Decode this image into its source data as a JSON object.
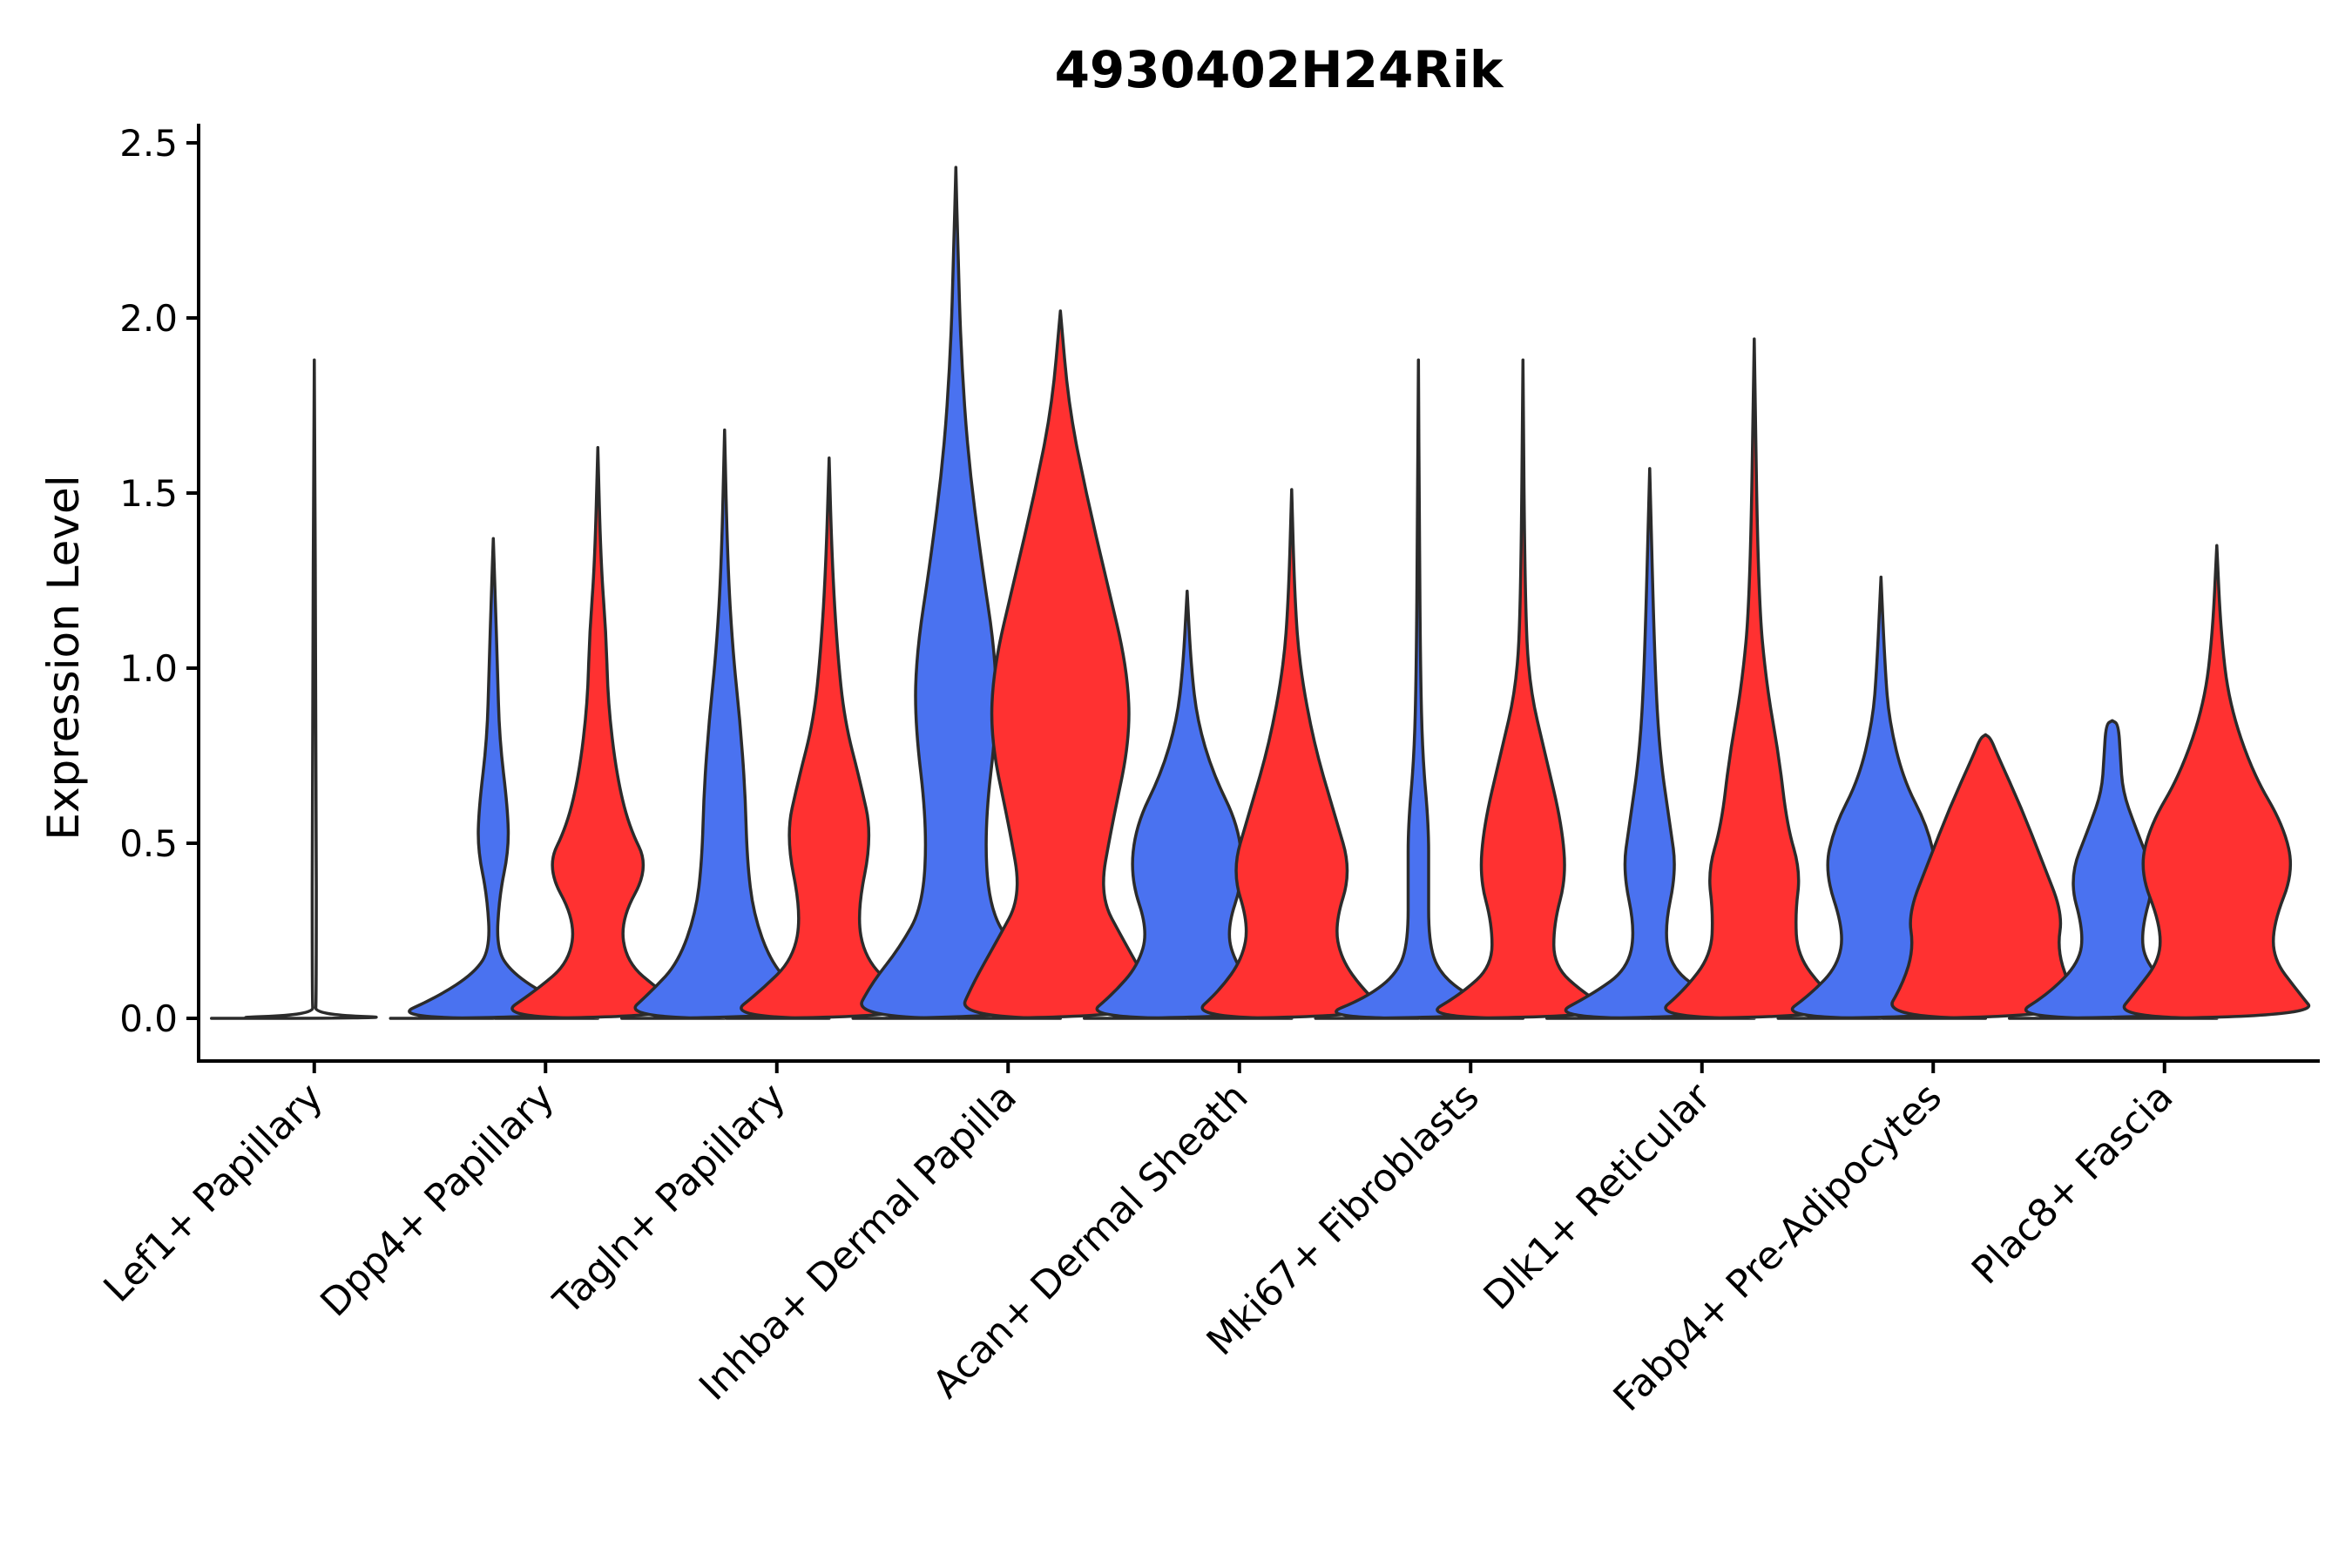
{
  "chart_data": {
    "type": "violin",
    "title": "4930402H24Rik",
    "ylabel": "Expression Level",
    "xlabel": "",
    "ylim": [
      -0.12,
      2.55
    ],
    "yticks": [
      0.0,
      0.5,
      1.0,
      1.5,
      2.0,
      2.5
    ],
    "ytick_labels": [
      "0.0",
      "0.5",
      "1.0",
      "1.5",
      "2.0",
      "2.5"
    ],
    "colors": {
      "group1": "#4a72f0",
      "group2": "#ff3131",
      "empty": "#ffffff",
      "outline": "#2b2b2b"
    },
    "categories": [
      "Lef1+ Papillary",
      "Dpp4+ Papillary",
      "Tagln+ Papillary",
      "Inhba+ Dermal Papilla",
      "Acan+ Dermal Sheath",
      "Mki67+ Fibroblasts",
      "Dlk1+ Reticular",
      "Fabp4+ Pre-Adipocytes",
      "Plac8+ Fascia"
    ],
    "violins": [
      {
        "category": "Lef1+ Papillary",
        "group": "group1",
        "max": 1.88,
        "profile": [
          [
            0.0,
            1.0
          ],
          [
            0.01,
            0.01
          ],
          [
            0.05,
            0.02
          ],
          [
            0.7,
            0.02
          ],
          [
            1.88,
            0.0
          ]
        ]
      },
      {
        "category": "Dpp4+ Papillary",
        "group": "group1",
        "max": 1.37,
        "profile": [
          [
            0.0,
            1.0
          ],
          [
            0.06,
            0.55
          ],
          [
            0.13,
            0.18
          ],
          [
            0.2,
            0.03
          ],
          [
            0.35,
            0.06
          ],
          [
            0.48,
            0.15
          ],
          [
            0.6,
            0.14
          ],
          [
            0.8,
            0.06
          ],
          [
            1.0,
            0.04
          ],
          [
            1.2,
            0.02
          ],
          [
            1.37,
            0.0
          ]
        ]
      },
      {
        "category": "Dpp4+ Papillary",
        "group": "group2",
        "max": 1.63,
        "profile": [
          [
            0.0,
            1.0
          ],
          [
            0.08,
            0.6
          ],
          [
            0.16,
            0.28
          ],
          [
            0.28,
            0.22
          ],
          [
            0.43,
            0.5
          ],
          [
            0.55,
            0.3
          ],
          [
            0.7,
            0.18
          ],
          [
            0.9,
            0.1
          ],
          [
            1.1,
            0.08
          ],
          [
            1.3,
            0.03
          ],
          [
            1.63,
            0.0
          ]
        ]
      },
      {
        "category": "Tagln+ Papillary",
        "group": "group1",
        "max": 1.68,
        "profile": [
          [
            0.0,
            1.0
          ],
          [
            0.08,
            0.7
          ],
          [
            0.16,
            0.45
          ],
          [
            0.3,
            0.28
          ],
          [
            0.45,
            0.22
          ],
          [
            0.65,
            0.2
          ],
          [
            0.85,
            0.15
          ],
          [
            1.05,
            0.08
          ],
          [
            1.3,
            0.03
          ],
          [
            1.68,
            0.0
          ]
        ]
      },
      {
        "category": "Tagln+ Papillary",
        "group": "group2",
        "max": 1.6,
        "profile": [
          [
            0.0,
            1.0
          ],
          [
            0.08,
            0.66
          ],
          [
            0.17,
            0.35
          ],
          [
            0.3,
            0.27
          ],
          [
            0.52,
            0.42
          ],
          [
            0.68,
            0.3
          ],
          [
            0.85,
            0.15
          ],
          [
            1.05,
            0.08
          ],
          [
            1.3,
            0.03
          ],
          [
            1.6,
            0.0
          ]
        ]
      },
      {
        "category": "Inhba+ Dermal Papilla",
        "group": "group1",
        "max": 2.43,
        "profile": [
          [
            0.0,
            1.0
          ],
          [
            0.1,
            0.82
          ],
          [
            0.2,
            0.55
          ],
          [
            0.32,
            0.32
          ],
          [
            0.55,
            0.28
          ],
          [
            0.85,
            0.4
          ],
          [
            1.05,
            0.38
          ],
          [
            1.3,
            0.25
          ],
          [
            1.6,
            0.12
          ],
          [
            1.9,
            0.05
          ],
          [
            2.2,
            0.02
          ],
          [
            2.43,
            0.0
          ]
        ]
      },
      {
        "category": "Inhba+ Dermal Papilla",
        "group": "group2",
        "max": 2.02,
        "profile": [
          [
            0.0,
            1.0
          ],
          [
            0.1,
            0.85
          ],
          [
            0.22,
            0.62
          ],
          [
            0.35,
            0.38
          ],
          [
            0.55,
            0.5
          ],
          [
            0.8,
            0.68
          ],
          [
            1.0,
            0.65
          ],
          [
            1.25,
            0.45
          ],
          [
            1.5,
            0.25
          ],
          [
            1.75,
            0.08
          ],
          [
            2.02,
            0.0
          ]
        ]
      },
      {
        "category": "Acan+ Dermal Sheath",
        "group": "group1",
        "max": 1.22,
        "profile": [
          [
            0.0,
            1.0
          ],
          [
            0.07,
            0.72
          ],
          [
            0.15,
            0.48
          ],
          [
            0.25,
            0.38
          ],
          [
            0.4,
            0.55
          ],
          [
            0.55,
            0.5
          ],
          [
            0.7,
            0.25
          ],
          [
            0.85,
            0.1
          ],
          [
            1.0,
            0.04
          ],
          [
            1.22,
            0.0
          ]
        ]
      },
      {
        "category": "Acan+ Dermal Sheath",
        "group": "group2",
        "max": 1.51,
        "profile": [
          [
            0.0,
            1.0
          ],
          [
            0.08,
            0.7
          ],
          [
            0.17,
            0.48
          ],
          [
            0.27,
            0.42
          ],
          [
            0.42,
            0.58
          ],
          [
            0.58,
            0.42
          ],
          [
            0.78,
            0.22
          ],
          [
            1.0,
            0.08
          ],
          [
            1.2,
            0.03
          ],
          [
            1.51,
            0.0
          ]
        ]
      },
      {
        "category": "Mki67+ Fibroblasts",
        "group": "group1",
        "max": 1.88,
        "profile": [
          [
            0.0,
            1.0
          ],
          [
            0.06,
            0.5
          ],
          [
            0.13,
            0.2
          ],
          [
            0.22,
            0.1
          ],
          [
            0.4,
            0.1
          ],
          [
            0.55,
            0.1
          ],
          [
            0.75,
            0.04
          ],
          [
            1.0,
            0.02
          ],
          [
            1.4,
            0.01
          ],
          [
            1.88,
            0.0
          ]
        ]
      },
      {
        "category": "Mki67+ Fibroblasts",
        "group": "group2",
        "max": 1.88,
        "profile": [
          [
            0.0,
            1.0
          ],
          [
            0.07,
            0.6
          ],
          [
            0.15,
            0.3
          ],
          [
            0.27,
            0.3
          ],
          [
            0.4,
            0.42
          ],
          [
            0.55,
            0.38
          ],
          [
            0.75,
            0.22
          ],
          [
            0.95,
            0.06
          ],
          [
            1.2,
            0.02
          ],
          [
            1.88,
            0.0
          ]
        ]
      },
      {
        "category": "Dlk1+ Reticular",
        "group": "group1",
        "max": 1.57,
        "profile": [
          [
            0.0,
            1.0
          ],
          [
            0.07,
            0.55
          ],
          [
            0.14,
            0.22
          ],
          [
            0.25,
            0.14
          ],
          [
            0.42,
            0.26
          ],
          [
            0.55,
            0.2
          ],
          [
            0.75,
            0.1
          ],
          [
            1.0,
            0.05
          ],
          [
            1.57,
            0.0
          ]
        ]
      },
      {
        "category": "Dlk1+ Reticular",
        "group": "group2",
        "max": 1.94,
        "profile": [
          [
            0.0,
            1.0
          ],
          [
            0.08,
            0.68
          ],
          [
            0.18,
            0.42
          ],
          [
            0.3,
            0.4
          ],
          [
            0.42,
            0.45
          ],
          [
            0.55,
            0.32
          ],
          [
            0.75,
            0.24
          ],
          [
            0.95,
            0.12
          ],
          [
            1.2,
            0.04
          ],
          [
            1.94,
            0.0
          ]
        ]
      },
      {
        "category": "Fabp4+ Pre-Adipocytes",
        "group": "group1",
        "max": 1.26,
        "profile": [
          [
            0.0,
            1.0
          ],
          [
            0.07,
            0.68
          ],
          [
            0.15,
            0.42
          ],
          [
            0.25,
            0.36
          ],
          [
            0.42,
            0.55
          ],
          [
            0.55,
            0.45
          ],
          [
            0.68,
            0.22
          ],
          [
            0.85,
            0.08
          ],
          [
            1.0,
            0.04
          ],
          [
            1.26,
            0.0
          ]
        ]
      },
      {
        "category": "Fabp4+ Pre-Adipocytes",
        "group": "group2",
        "max": 0.81,
        "profile": [
          [
            0.0,
            1.0
          ],
          [
            0.1,
            0.8
          ],
          [
            0.2,
            0.7
          ],
          [
            0.3,
            0.75
          ],
          [
            0.45,
            0.55
          ],
          [
            0.6,
            0.35
          ],
          [
            0.75,
            0.12
          ],
          [
            0.8,
            0.05
          ],
          [
            0.81,
            0.0
          ]
        ]
      },
      {
        "category": "Plac8+ Fascia",
        "group": "group1",
        "max": 0.85,
        "profile": [
          [
            0.0,
            1.0
          ],
          [
            0.07,
            0.62
          ],
          [
            0.16,
            0.32
          ],
          [
            0.25,
            0.28
          ],
          [
            0.4,
            0.42
          ],
          [
            0.55,
            0.22
          ],
          [
            0.65,
            0.1
          ],
          [
            0.75,
            0.08
          ],
          [
            0.84,
            0.06
          ],
          [
            0.85,
            0.0
          ]
        ]
      },
      {
        "category": "Plac8+ Fascia",
        "group": "group2",
        "max": 1.35,
        "profile": [
          [
            0.0,
            1.0
          ],
          [
            0.08,
            0.78
          ],
          [
            0.17,
            0.55
          ],
          [
            0.27,
            0.55
          ],
          [
            0.42,
            0.75
          ],
          [
            0.55,
            0.65
          ],
          [
            0.7,
            0.35
          ],
          [
            0.9,
            0.12
          ],
          [
            1.1,
            0.04
          ],
          [
            1.35,
            0.0
          ]
        ]
      }
    ]
  }
}
